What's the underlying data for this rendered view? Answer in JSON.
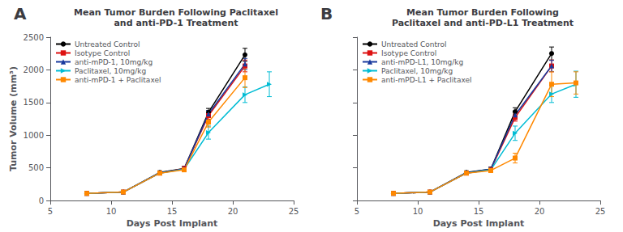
{
  "chart_data": [
    {
      "type": "line",
      "title": "Mean Tumor Burden Following Paclitaxel\nand anti-PD-1 Treatment",
      "annotations": [
        "A"
      ],
      "xlabel": "Days Post Implant",
      "ylabel": "Tumor Volume (mm³)",
      "xlim": [
        5,
        25
      ],
      "ylim": [
        0,
        2500
      ],
      "xticks": [
        5,
        10,
        15,
        20,
        25
      ],
      "yticks": [
        0,
        500,
        1000,
        1500,
        2000,
        2500
      ],
      "grid": false,
      "legend": "upper left",
      "series": [
        {
          "name": "Untreated Control",
          "color": "#000000",
          "marker": "circle",
          "x": [
            8,
            11,
            14,
            16,
            18,
            21
          ],
          "values": [
            110,
            130,
            430,
            490,
            1350,
            2230
          ],
          "yerr": [
            10,
            12,
            25,
            30,
            60,
            100
          ]
        },
        {
          "name": "Isotype Control",
          "color": "#dd1111",
          "marker": "square",
          "x": [
            8,
            11,
            14,
            16,
            18,
            21
          ],
          "values": [
            110,
            130,
            420,
            490,
            1300,
            2060
          ],
          "yerr": [
            10,
            12,
            25,
            30,
            55,
            90
          ]
        },
        {
          "name": "anti-mPD-1, 10mg/kg",
          "color": "#1a3a9e",
          "marker": "triangle-up",
          "x": [
            8,
            11,
            14,
            16,
            18,
            21
          ],
          "values": [
            110,
            130,
            425,
            485,
            1325,
            2090
          ],
          "yerr": [
            10,
            12,
            25,
            35,
            55,
            85
          ]
        },
        {
          "name": "Paclitaxel, 10mg/kg",
          "color": "#00bcd4",
          "marker": "triangle-right",
          "x": [
            8,
            11,
            14,
            16,
            18,
            21,
            23
          ],
          "values": [
            110,
            130,
            420,
            480,
            1040,
            1620,
            1780
          ],
          "yerr": [
            10,
            12,
            25,
            30,
            100,
            120,
            190
          ]
        },
        {
          "name": "anti-mPD-1 + Paclitaxel",
          "color": "#ff8800",
          "marker": "square",
          "x": [
            8,
            11,
            14,
            16,
            18,
            21
          ],
          "values": [
            110,
            130,
            420,
            470,
            1200,
            1880
          ],
          "yerr": [
            10,
            12,
            25,
            30,
            75,
            150
          ]
        }
      ]
    },
    {
      "type": "line",
      "title": "Mean Tumor Burden Following\nPaclitaxel and anti-PD-L1 Treatment",
      "annotations": [
        "B"
      ],
      "xlabel": "Days Post Implant",
      "xlim": [
        5,
        25
      ],
      "ylim": [
        0,
        2500
      ],
      "xticks": [
        5,
        10,
        15,
        20,
        25
      ],
      "yticks": [
        0,
        500,
        1000,
        1500,
        2000,
        2500
      ],
      "grid": false,
      "legend": "upper left",
      "tick_labels": "x",
      "series": [
        {
          "name": "Untreated Control",
          "color": "#000000",
          "marker": "circle",
          "x": [
            8,
            11,
            14,
            16,
            18,
            21
          ],
          "values": [
            110,
            130,
            430,
            480,
            1360,
            2250
          ],
          "yerr": [
            10,
            12,
            25,
            30,
            60,
            100
          ]
        },
        {
          "name": "Isotype Control",
          "color": "#dd1111",
          "marker": "square",
          "x": [
            8,
            11,
            14,
            16,
            18,
            21
          ],
          "values": [
            110,
            130,
            420,
            475,
            1270,
            2060
          ],
          "yerr": [
            10,
            12,
            25,
            30,
            55,
            90
          ]
        },
        {
          "name": "anti-mPD-L1, 10mg/kg",
          "color": "#1a3a9e",
          "marker": "triangle-up",
          "x": [
            8,
            11,
            14,
            16,
            18,
            21
          ],
          "values": [
            110,
            130,
            425,
            480,
            1310,
            2060
          ],
          "yerr": [
            10,
            12,
            25,
            30,
            55,
            85
          ]
        },
        {
          "name": "Paclitaxel, 10mg/kg",
          "color": "#00bcd4",
          "marker": "triangle-right",
          "x": [
            8,
            11,
            14,
            16,
            18,
            21,
            23
          ],
          "values": [
            110,
            130,
            420,
            470,
            1030,
            1630,
            1780
          ],
          "yerr": [
            10,
            12,
            25,
            30,
            110,
            130,
            200
          ]
        },
        {
          "name": "anti-mPD-L1 + Paclitaxel",
          "color": "#ff8800",
          "marker": "square",
          "x": [
            8,
            11,
            14,
            16,
            18,
            21,
            23
          ],
          "values": [
            110,
            130,
            420,
            460,
            650,
            1780,
            1800
          ],
          "yerr": [
            10,
            12,
            25,
            30,
            75,
            190,
            170
          ]
        }
      ]
    }
  ]
}
